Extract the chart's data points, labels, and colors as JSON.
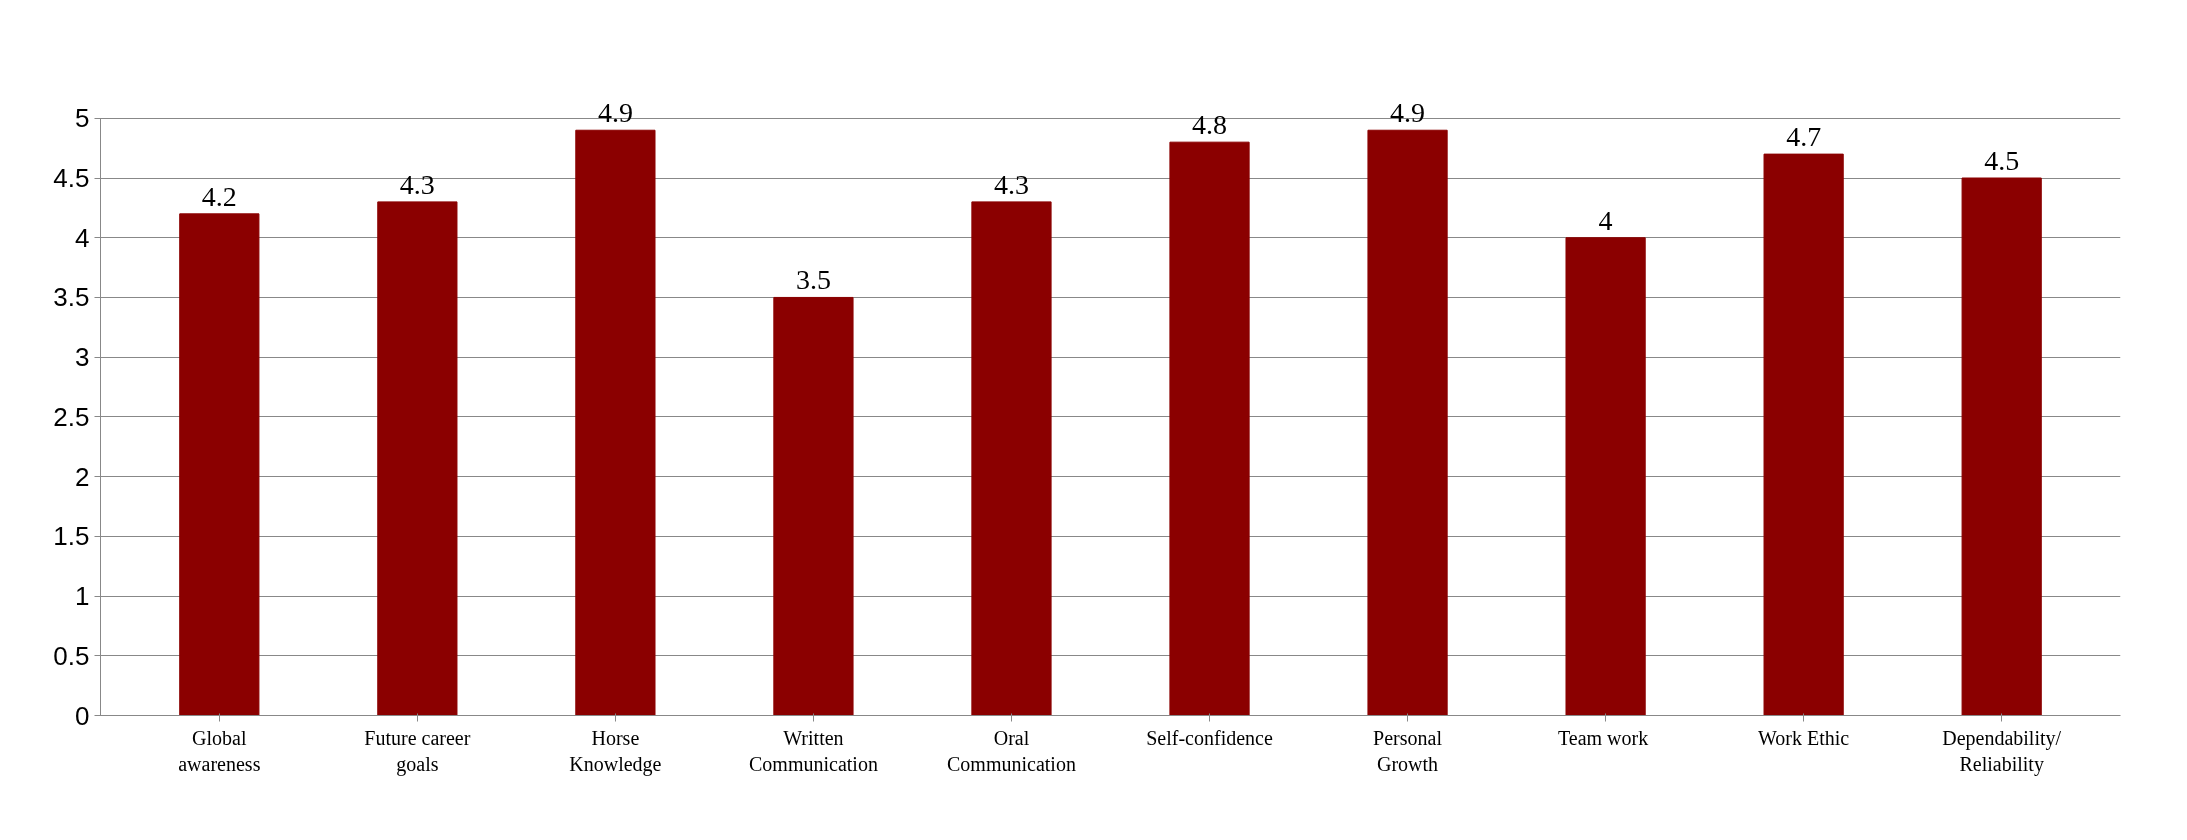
{
  "chart_data": {
    "type": "bar",
    "categories": [
      "Global awareness",
      "Future career goals",
      "Horse Knowledge",
      "Written Communication",
      "Oral Communication",
      "Self-confidence",
      "Personal Growth",
      "Team  work",
      "Work Ethic",
      "Dependability/ Reliability"
    ],
    "values": [
      4.2,
      4.3,
      4.9,
      3.5,
      4.3,
      4.8,
      4.9,
      4.0,
      4.7,
      4.5
    ],
    "color": "#8b0000",
    "ylim": [
      0,
      5
    ],
    "yticks": [
      0,
      0.5,
      1,
      1.5,
      2,
      2.5,
      3,
      3.5,
      4,
      4.5,
      5
    ],
    "grid": "y",
    "data_labels": true
  }
}
